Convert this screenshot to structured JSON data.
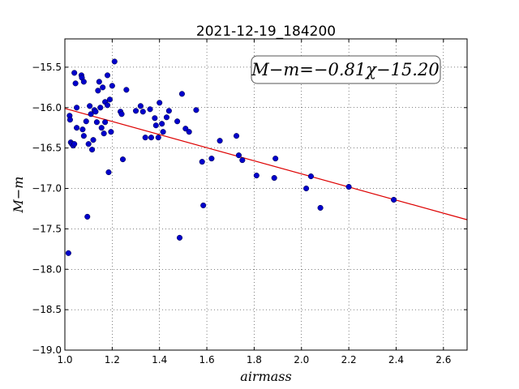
{
  "chart_data": {
    "type": "scatter",
    "title": "2021-12-19_184200",
    "xlabel": "airmass",
    "ylabel": "M−m",
    "xlim": [
      1.0,
      2.7
    ],
    "ylim": [
      -19.0,
      -15.15
    ],
    "xticks": [
      "1.0",
      "1.2",
      "1.4",
      "1.6",
      "1.8",
      "2.0",
      "2.2",
      "2.4",
      "2.6"
    ],
    "yticks": [
      "−15.5",
      "−16.0",
      "−16.5",
      "−17.0",
      "−17.5",
      "−18.0",
      "−18.5",
      "−19.0"
    ],
    "grid": true,
    "annotation": "M−m=−0.81χ−15.20",
    "colors": {
      "points": "#0000cc",
      "fit": "#dd0000"
    },
    "series": [
      {
        "points": [
          [
            1.015,
            -17.8
          ],
          [
            1.02,
            -16.1
          ],
          [
            1.022,
            -16.15
          ],
          [
            1.025,
            -16.43
          ],
          [
            1.03,
            -16.45
          ],
          [
            1.035,
            -16.47
          ],
          [
            1.04,
            -16.45
          ],
          [
            1.04,
            -15.57
          ],
          [
            1.045,
            -15.7
          ],
          [
            1.05,
            -16.25
          ],
          [
            1.05,
            -16.0
          ],
          [
            1.07,
            -15.6
          ],
          [
            1.072,
            -15.63
          ],
          [
            1.08,
            -16.35
          ],
          [
            1.075,
            -16.27
          ],
          [
            1.08,
            -15.68
          ],
          [
            1.09,
            -16.17
          ],
          [
            1.095,
            -17.35
          ],
          [
            1.1,
            -16.45
          ],
          [
            1.105,
            -15.98
          ],
          [
            1.11,
            -16.08
          ],
          [
            1.115,
            -16.52
          ],
          [
            1.12,
            -16.4
          ],
          [
            1.125,
            -16.03
          ],
          [
            1.13,
            -16.05
          ],
          [
            1.135,
            -16.18
          ],
          [
            1.14,
            -15.79
          ],
          [
            1.145,
            -15.68
          ],
          [
            1.15,
            -16.0
          ],
          [
            1.155,
            -16.25
          ],
          [
            1.16,
            -15.75
          ],
          [
            1.165,
            -16.32
          ],
          [
            1.17,
            -16.18
          ],
          [
            1.17,
            -15.93
          ],
          [
            1.18,
            -15.97
          ],
          [
            1.18,
            -15.6
          ],
          [
            1.185,
            -16.8
          ],
          [
            1.19,
            -15.9
          ],
          [
            1.195,
            -16.3
          ],
          [
            1.2,
            -15.73
          ],
          [
            1.21,
            -15.43
          ],
          [
            1.235,
            -16.05
          ],
          [
            1.24,
            -16.08
          ],
          [
            1.245,
            -16.64
          ],
          [
            1.26,
            -15.78
          ],
          [
            1.3,
            -16.04
          ],
          [
            1.32,
            -15.98
          ],
          [
            1.33,
            -16.05
          ],
          [
            1.34,
            -16.37
          ],
          [
            1.36,
            -16.02
          ],
          [
            1.365,
            -16.37
          ],
          [
            1.38,
            -16.13
          ],
          [
            1.385,
            -16.22
          ],
          [
            1.395,
            -16.37
          ],
          [
            1.4,
            -15.94
          ],
          [
            1.41,
            -16.2
          ],
          [
            1.415,
            -16.3
          ],
          [
            1.43,
            -16.12
          ],
          [
            1.44,
            -16.04
          ],
          [
            1.475,
            -16.17
          ],
          [
            1.485,
            -17.61
          ],
          [
            1.495,
            -15.83
          ],
          [
            1.51,
            -16.26
          ],
          [
            1.525,
            -16.3
          ],
          [
            1.555,
            -16.03
          ],
          [
            1.58,
            -16.67
          ],
          [
            1.585,
            -17.21
          ],
          [
            1.62,
            -16.63
          ],
          [
            1.655,
            -16.41
          ],
          [
            1.725,
            -16.35
          ],
          [
            1.735,
            -16.59
          ],
          [
            1.75,
            -16.65
          ],
          [
            1.81,
            -16.84
          ],
          [
            1.885,
            -16.87
          ],
          [
            1.89,
            -16.63
          ],
          [
            2.02,
            -17.0
          ],
          [
            2.04,
            -16.85
          ],
          [
            2.08,
            -17.24
          ],
          [
            2.2,
            -16.98
          ],
          [
            2.39,
            -17.14
          ]
        ]
      }
    ],
    "fit": {
      "slope": -0.81,
      "intercept": -15.2
    }
  }
}
